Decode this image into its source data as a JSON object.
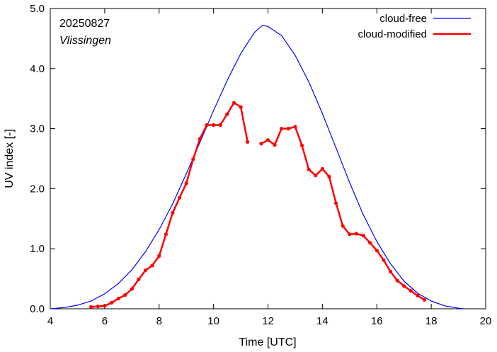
{
  "chart_data": {
    "type": "line",
    "xlabel": "Time  [UTC]",
    "ylabel": "UV index  [-]",
    "xlim": [
      4,
      20
    ],
    "ylim": [
      0,
      5
    ],
    "x_ticks": [
      4,
      6,
      8,
      10,
      12,
      14,
      16,
      18,
      20
    ],
    "x_tick_labels": [
      "4",
      "6",
      "8",
      "10",
      "12",
      "14",
      "16",
      "18",
      "20"
    ],
    "y_ticks": [
      0,
      1,
      2,
      3,
      4,
      5
    ],
    "y_tick_labels": [
      "0.0",
      "1.0",
      "2.0",
      "3.0",
      "4.0",
      "5.0"
    ],
    "grid": false,
    "legend_position": "top-right",
    "annotations": [
      "20250827",
      "Vlissingen"
    ],
    "series": [
      {
        "name": "cloud-free",
        "color": "#0000ff",
        "markers": false,
        "segments": [
          [
            [
              4.0,
              0.0
            ],
            [
              4.5,
              0.02
            ],
            [
              5.0,
              0.06
            ],
            [
              5.5,
              0.13
            ],
            [
              6.0,
              0.25
            ],
            [
              6.5,
              0.42
            ],
            [
              7.0,
              0.65
            ],
            [
              7.5,
              0.95
            ],
            [
              8.0,
              1.32
            ],
            [
              8.5,
              1.75
            ],
            [
              9.0,
              2.25
            ],
            [
              9.5,
              2.77
            ],
            [
              10.0,
              3.3
            ],
            [
              10.5,
              3.8
            ],
            [
              11.0,
              4.25
            ],
            [
              11.5,
              4.6
            ],
            [
              11.8,
              4.72
            ],
            [
              12.0,
              4.7
            ],
            [
              12.5,
              4.55
            ],
            [
              13.0,
              4.22
            ],
            [
              13.5,
              3.78
            ],
            [
              14.0,
              3.25
            ],
            [
              14.5,
              2.68
            ],
            [
              15.0,
              2.1
            ],
            [
              15.5,
              1.57
            ],
            [
              16.0,
              1.12
            ],
            [
              16.5,
              0.75
            ],
            [
              17.0,
              0.46
            ],
            [
              17.5,
              0.26
            ],
            [
              18.0,
              0.13
            ],
            [
              18.5,
              0.05
            ],
            [
              19.0,
              0.01
            ],
            [
              19.2,
              0.0
            ]
          ]
        ]
      },
      {
        "name": "cloud-modified",
        "color": "#ff0000",
        "markers": true,
        "segments": [
          [
            [
              5.5,
              0.03
            ],
            [
              5.75,
              0.04
            ],
            [
              6.0,
              0.05
            ],
            [
              6.25,
              0.1
            ],
            [
              6.5,
              0.17
            ],
            [
              6.75,
              0.23
            ],
            [
              7.0,
              0.33
            ],
            [
              7.25,
              0.49
            ],
            [
              7.5,
              0.64
            ],
            [
              7.75,
              0.72
            ],
            [
              8.0,
              0.88
            ],
            [
              8.25,
              1.24
            ],
            [
              8.5,
              1.6
            ],
            [
              8.75,
              1.85
            ],
            [
              9.0,
              2.09
            ],
            [
              9.25,
              2.49
            ],
            [
              9.5,
              2.83
            ],
            [
              9.75,
              3.06
            ],
            [
              10.0,
              3.06
            ],
            [
              10.25,
              3.06
            ],
            [
              10.5,
              3.24
            ],
            [
              10.75,
              3.43
            ],
            [
              11.0,
              3.36
            ],
            [
              11.25,
              2.78
            ]
          ],
          [
            [
              11.75,
              2.75
            ],
            [
              12.0,
              2.81
            ],
            [
              12.25,
              2.73
            ],
            [
              12.5,
              3.0
            ],
            [
              12.75,
              3.0
            ],
            [
              13.0,
              3.03
            ],
            [
              13.25,
              2.72
            ],
            [
              13.5,
              2.32
            ],
            [
              13.75,
              2.22
            ],
            [
              14.0,
              2.33
            ],
            [
              14.25,
              2.2
            ],
            [
              14.5,
              1.76
            ],
            [
              14.75,
              1.38
            ],
            [
              15.0,
              1.24
            ],
            [
              15.25,
              1.25
            ],
            [
              15.5,
              1.22
            ],
            [
              15.75,
              1.1
            ],
            [
              16.0,
              0.97
            ],
            [
              16.25,
              0.81
            ],
            [
              16.5,
              0.62
            ],
            [
              16.75,
              0.47
            ],
            [
              17.0,
              0.38
            ],
            [
              17.25,
              0.3
            ],
            [
              17.5,
              0.22
            ],
            [
              17.75,
              0.15
            ]
          ]
        ]
      }
    ]
  }
}
